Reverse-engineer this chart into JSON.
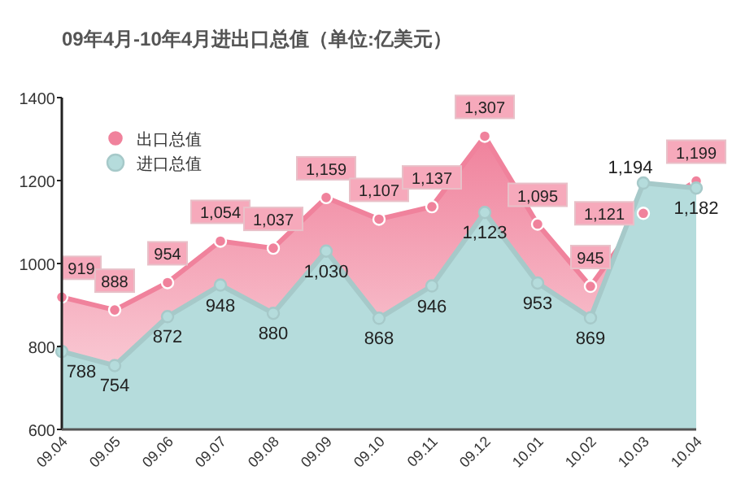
{
  "chart_data": {
    "type": "area",
    "title": "09年4月-10年4月进出口总值（单位:亿美元）",
    "categories": [
      "09.04",
      "09.05",
      "09.06",
      "09.07",
      "09.08",
      "09.09",
      "09.10",
      "09.11",
      "09.12",
      "10.01",
      "10.02",
      "10.03",
      "10.04"
    ],
    "series": [
      {
        "name": "出口总值",
        "color": "#f0829c",
        "values": [
          919,
          888,
          954,
          1054,
          1037,
          1159,
          1107,
          1137,
          1307,
          1095,
          945,
          1121,
          1199
        ],
        "value_labels": [
          "919",
          "888",
          "954",
          "1,054",
          "1,037",
          "1,159",
          "1,107",
          "1,137",
          "1,307",
          "1,095",
          "945",
          "1,121",
          "1,199"
        ]
      },
      {
        "name": "进口总值",
        "color": "#b5dcdc",
        "values": [
          788,
          754,
          872,
          948,
          880,
          1030,
          868,
          946,
          1123,
          953,
          869,
          1194,
          1182
        ],
        "value_labels": [
          "788",
          "754",
          "872",
          "948",
          "880",
          "1,030",
          "868",
          "946",
          "1,123",
          "953",
          "869",
          "1,194",
          "1,182"
        ]
      }
    ],
    "ylim": [
      600,
      1400
    ],
    "yticks": [
      600,
      800,
      1000,
      1200,
      1400
    ],
    "legend": "top left",
    "marker": "circle",
    "grid": false
  }
}
